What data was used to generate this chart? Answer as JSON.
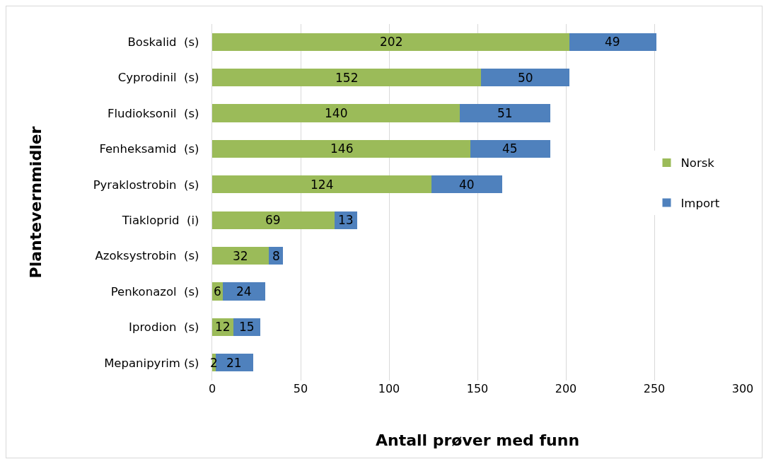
{
  "chart_data": {
    "type": "bar",
    "orientation": "horizontal",
    "stacked": true,
    "categories": [
      "Boskalid  (s)",
      "Cyprodinil  (s)",
      "Fludioksonil  (s)",
      "Fenheksamid  (s)",
      "Pyraklostrobin  (s)",
      "Tiakloprid  (i)",
      "Azoksystrobin  (s)",
      "Penkonazol  (s)",
      "Iprodion  (s)",
      "Mepanipyrim (s)"
    ],
    "series": [
      {
        "name": "Norsk",
        "color": "#9bbb59",
        "values": [
          202,
          152,
          140,
          146,
          124,
          69,
          32,
          6,
          12,
          2
        ]
      },
      {
        "name": "Import",
        "color": "#4f81bd",
        "values": [
          49,
          50,
          51,
          45,
          40,
          13,
          8,
          24,
          15,
          21
        ]
      }
    ],
    "xlim": [
      0,
      300
    ],
    "xticks": [
      0,
      50,
      100,
      150,
      200,
      250,
      300
    ],
    "xlabel": "Antall prøver med funn",
    "ylabel": "Plantevernmidler",
    "grid": "x",
    "legend": "right",
    "data_labels": true
  }
}
